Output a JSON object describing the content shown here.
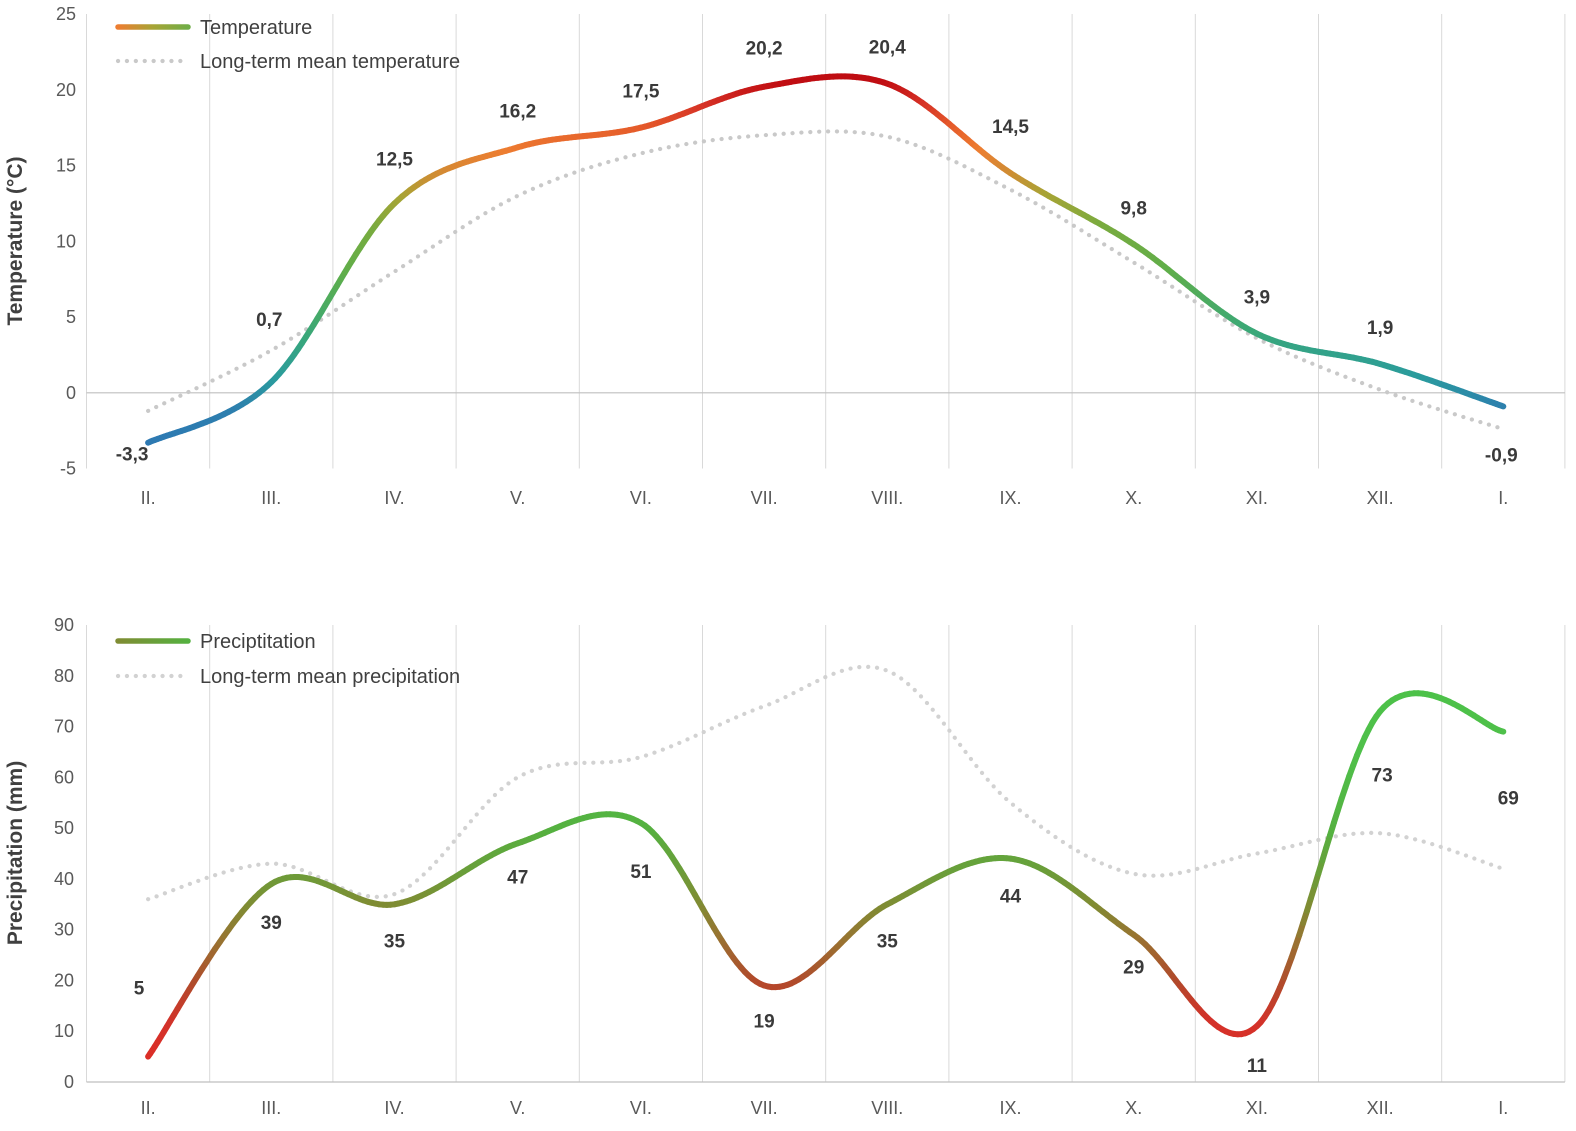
{
  "chart_data": [
    {
      "type": "line",
      "name": "temperature-chart",
      "title": "",
      "categories": [
        "II.",
        "III.",
        "IV.",
        "V.",
        "VI.",
        "VII.",
        "VIII.",
        "IX.",
        "X.",
        "XI.",
        "XII.",
        "I."
      ],
      "ylabel": "Temperature (°C)",
      "ylim": [
        -5,
        25
      ],
      "ytick_step": 5,
      "grid": "vertical-only",
      "legend_position": "top-left",
      "series": [
        {
          "name": "Temperature",
          "type": "smooth-line-gradient",
          "values": [
            -3.3,
            0.7,
            12.5,
            16.2,
            17.5,
            20.2,
            20.4,
            14.5,
            9.8,
            3.9,
            1.9,
            -0.9
          ],
          "point_labels": [
            "-3,3",
            "0,7",
            "12,5",
            "16,2",
            "17,5",
            "20,2",
            "20,4",
            "14,5",
            "9,8",
            "3,9",
            "1,9",
            "-0,9"
          ],
          "label_offsets": [
            [
              -16,
              18
            ],
            [
              -2,
              -56
            ],
            [
              0,
              -38
            ],
            [
              0,
              -30
            ],
            [
              0,
              -30
            ],
            [
              0,
              -32
            ],
            [
              0,
              -30
            ],
            [
              0,
              -40
            ],
            [
              0,
              -30
            ],
            [
              0,
              -30
            ],
            [
              0,
              -30
            ],
            [
              -2,
              55
            ]
          ],
          "legend_sample_colors": [
            "#ed7d31",
            "#a7a435",
            "#70ad47"
          ],
          "color_stops": [
            [
              -5,
              "#2e75b6"
            ],
            [
              -1,
              "#2d7fae"
            ],
            [
              1,
              "#2a9b9e"
            ],
            [
              4,
              "#3aa878"
            ],
            [
              8,
              "#5fae4a"
            ],
            [
              11,
              "#79ab3f"
            ],
            [
              13,
              "#a7a435"
            ],
            [
              14.5,
              "#d08c33"
            ],
            [
              16,
              "#ed7d31"
            ],
            [
              17.5,
              "#e55b2a"
            ],
            [
              19,
              "#d63226"
            ],
            [
              20.5,
              "#c00d12"
            ],
            [
              25,
              "#b00a0f"
            ]
          ]
        },
        {
          "name": "Long-term mean temperature",
          "type": "dotted-line",
          "color": "#c9c9c9",
          "values": [
            -1.2,
            2.8,
            8.0,
            13.0,
            15.8,
            17.0,
            16.9,
            13.4,
            8.6,
            3.6,
            0.2,
            -2.4
          ]
        }
      ]
    },
    {
      "type": "line",
      "name": "precipitation-chart",
      "title": "",
      "categories": [
        "II.",
        "III.",
        "IV.",
        "V.",
        "VI.",
        "VII.",
        "VIII.",
        "IX.",
        "X.",
        "XI.",
        "XII.",
        "I."
      ],
      "ylabel": "Precipitation (mm)",
      "ylim": [
        0,
        90
      ],
      "ytick_step": 10,
      "grid": "vertical-only",
      "legend_position": "top-left",
      "series": [
        {
          "name": "Preciptitation",
          "type": "smooth-line-gradient",
          "values": [
            5,
            39,
            35,
            47,
            51,
            19,
            35,
            44,
            29,
            11,
            73,
            69
          ],
          "point_labels": [
            "5",
            "39",
            "35",
            "47",
            "51",
            "19",
            "35",
            "44",
            "29",
            "11",
            "73",
            "69"
          ],
          "label_offsets": [
            [
              -9,
              -62
            ],
            [
              0,
              45
            ],
            [
              0,
              43
            ],
            [
              0,
              40
            ],
            [
              0,
              55
            ],
            [
              0,
              42
            ],
            [
              0,
              43
            ],
            [
              0,
              44
            ],
            [
              0,
              39
            ],
            [
              0,
              46
            ],
            [
              2,
              70
            ],
            [
              5,
              73
            ]
          ],
          "legend_sample_colors": [
            "#7f8c33",
            "#55b140"
          ],
          "color_stops": [
            [
              0,
              "#e22b25"
            ],
            [
              12,
              "#d3322a"
            ],
            [
              20,
              "#b04b2b"
            ],
            [
              28,
              "#997231"
            ],
            [
              35,
              "#7f8c33"
            ],
            [
              42,
              "#699f3a"
            ],
            [
              50,
              "#55b140"
            ],
            [
              65,
              "#4fc04a"
            ],
            [
              90,
              "#4ac247"
            ]
          ]
        },
        {
          "name": "Long-term mean precipitation",
          "type": "dotted-line",
          "color": "#d2d2d2",
          "values": [
            36,
            43,
            37,
            60,
            64,
            74,
            81,
            55,
            41,
            45,
            49,
            42
          ]
        }
      ]
    }
  ],
  "styles": {
    "background": "#ffffff",
    "grid_color": "#d9d9d9",
    "axis_line_color": "#bfbfbf",
    "tick_label_color": "#595959",
    "data_label_color": "#3a3a3a",
    "legend_text_color": "#404040",
    "axis_title_color": "#404040"
  }
}
